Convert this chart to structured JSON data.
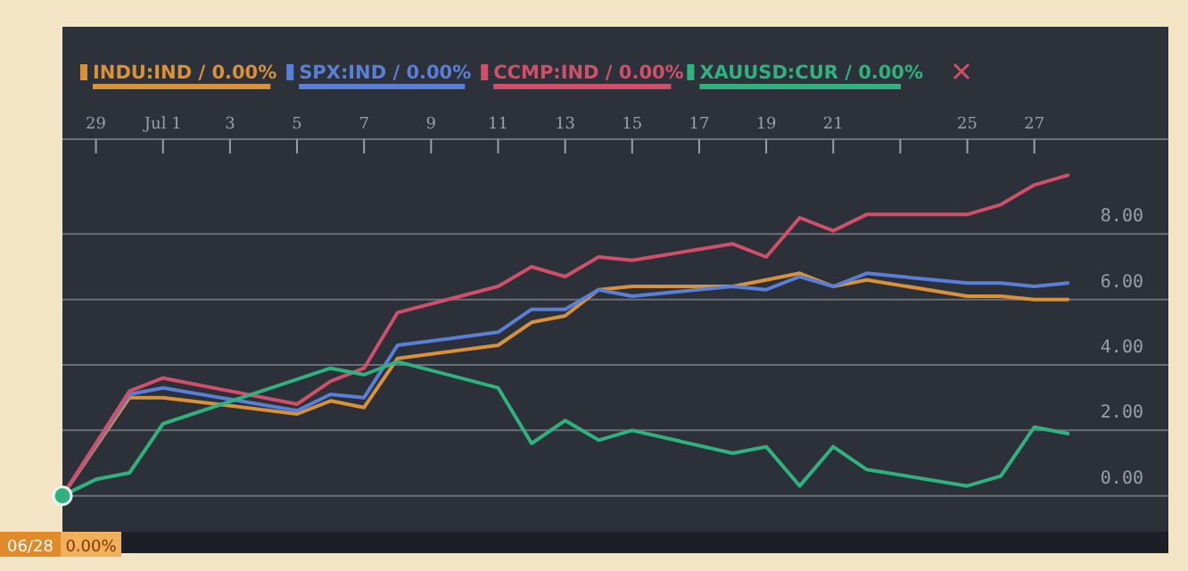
{
  "chart_data": {
    "type": "line",
    "x": [
      "--06-28",
      "--06-30",
      "--07-01",
      "--07-05",
      "--07-06",
      "--07-07",
      "--07-08",
      "--07-11",
      "--07-12",
      "--07-13",
      "--07-14",
      "--07-15",
      "--07-18",
      "--07-19",
      "--07-20",
      "--07-21",
      "--07-22",
      "--07-25",
      "--07-26",
      "--07-27",
      "--07-28"
    ],
    "series": [
      {
        "name": "INDU:IND / 0.00%",
        "color": "#d8923a",
        "values": [
          0,
          3.0,
          3.0,
          2.5,
          2.9,
          2.7,
          4.2,
          4.6,
          5.3,
          5.5,
          6.3,
          6.4,
          6.4,
          6.6,
          6.8,
          6.4,
          6.6,
          6.1,
          6.1,
          6.0,
          6.0
        ]
      },
      {
        "name": "SPX:IND / 0.00%",
        "color": "#5a7fd6",
        "values": [
          0,
          3.1,
          3.3,
          2.6,
          3.1,
          3.0,
          4.6,
          5.0,
          5.7,
          5.7,
          6.3,
          6.1,
          6.4,
          6.3,
          6.7,
          6.4,
          6.8,
          6.5,
          6.5,
          6.4,
          6.5
        ]
      },
      {
        "name": "CCMP:IND / 0.00%",
        "color": "#d0506a",
        "values": [
          0,
          3.2,
          3.6,
          2.8,
          3.5,
          3.9,
          5.6,
          6.4,
          7.0,
          6.7,
          7.3,
          7.2,
          7.7,
          7.3,
          8.5,
          8.1,
          8.6,
          8.6,
          8.9,
          9.5,
          9.8
        ]
      },
      {
        "name": "XAUUSD:CUR / 0.00%",
        "color": "#30b27f",
        "x": [
          "--06-28",
          "--06-29",
          "--06-30",
          "--07-01",
          "--07-06",
          "--07-07",
          "--07-08",
          "--07-11",
          "--07-12",
          "--07-13",
          "--07-14",
          "--07-15",
          "--07-18",
          "--07-19",
          "--07-20",
          "--07-21",
          "--07-22",
          "--07-25",
          "--07-26",
          "--07-27",
          "--07-28"
        ],
        "values": [
          0,
          0.5,
          0.7,
          2.2,
          3.9,
          3.7,
          4.1,
          3.3,
          1.6,
          2.3,
          1.7,
          2.0,
          1.3,
          1.5,
          0.3,
          1.5,
          0.8,
          0.3,
          0.6,
          2.1,
          1.9
        ]
      }
    ],
    "xlim": [
      "--06-28",
      "--07-31"
    ],
    "xticks": [
      {
        "value": "--06-29",
        "label": "29"
      },
      {
        "value": "--07-01",
        "label": "Jul 1"
      },
      {
        "value": "--07-03",
        "label": "3"
      },
      {
        "value": "--07-05",
        "label": "5"
      },
      {
        "value": "--07-07",
        "label": "7"
      },
      {
        "value": "--07-09",
        "label": "9"
      },
      {
        "value": "--07-11",
        "label": "11"
      },
      {
        "value": "--07-13",
        "label": "13"
      },
      {
        "value": "--07-15",
        "label": "15"
      },
      {
        "value": "--07-17",
        "label": "17"
      },
      {
        "value": "--07-19",
        "label": "19"
      },
      {
        "value": "--07-21",
        "label": "21"
      },
      {
        "value": "--07-23",
        "label": null
      },
      {
        "value": "--07-25",
        "label": "25"
      },
      {
        "value": "--07-27",
        "label": "27"
      }
    ],
    "ylim": [
      -1.1,
      10.9
    ],
    "yticks": [
      {
        "value": 0,
        "label": "0.00"
      },
      {
        "value": 2,
        "label": "2.00"
      },
      {
        "value": 4,
        "label": "4.00"
      },
      {
        "value": 6,
        "label": "6.00"
      },
      {
        "value": 8,
        "label": "8.00"
      }
    ],
    "grid": "y",
    "legend": "top",
    "line_style": "solid",
    "marker": "none",
    "annotations": [
      "06/28",
      "0.00%"
    ]
  }
}
